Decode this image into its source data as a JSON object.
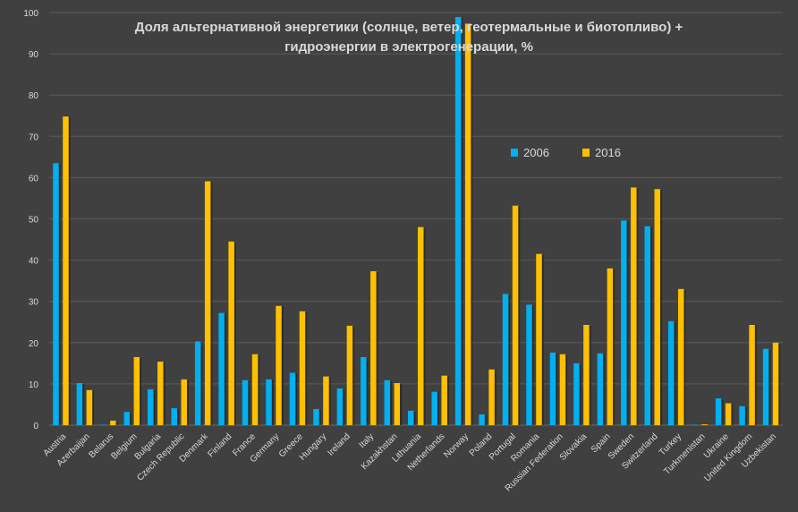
{
  "chart_data": {
    "type": "bar",
    "title_lines": [
      "Доля альтернативной энергетики (солнце, ветер, геотермальные и биотопливо) +",
      "гидроэнергии в электрогенерации, %"
    ],
    "ylim": [
      0,
      100
    ],
    "yticks": [
      0,
      10,
      20,
      30,
      40,
      50,
      60,
      70,
      80,
      90,
      100
    ],
    "grid": true,
    "legend_position": "right, upper-middle",
    "categories": [
      "Austria",
      "Azerbaijan",
      "Belarus",
      "Belgium",
      "Bulgaria",
      "Czech Republic",
      "Denmark",
      "Finland",
      "France",
      "Germany",
      "Greece",
      "Hungary",
      "Ireland",
      "Italy",
      "Kazakhstan",
      "Lithuania",
      "Netherlands",
      "Norway",
      "Poland",
      "Portugal",
      "Romania",
      "Russian Federation",
      "Slovakia",
      "Spain",
      "Sweden",
      "Switzerland",
      "Turkey",
      "Turkmenistan",
      "Ukraine",
      "United Kingdom",
      "Uzbekistan"
    ],
    "series": [
      {
        "name": "2006",
        "color": "#00b0f0",
        "values": [
          63.5,
          10.2,
          0.1,
          3.2,
          8.7,
          4.1,
          20.3,
          27.2,
          10.9,
          11.1,
          12.7,
          3.9,
          8.9,
          16.5,
          10.9,
          3.5,
          8.1,
          98.9,
          2.6,
          31.8,
          29.2,
          17.6,
          15.0,
          17.4,
          49.6,
          48.2,
          25.2,
          0.1,
          6.5,
          4.6,
          18.5
        ]
      },
      {
        "name": "2016",
        "color": "#ffc000",
        "values": [
          74.8,
          8.5,
          1.1,
          16.5,
          15.4,
          11.1,
          59.1,
          44.5,
          17.2,
          28.9,
          27.6,
          11.8,
          24.1,
          37.3,
          10.2,
          48.0,
          12.0,
          97.3,
          13.5,
          53.2,
          41.5,
          17.2,
          24.3,
          38.0,
          57.6,
          57.2,
          33.0,
          0.2,
          5.3,
          24.3,
          20.0
        ]
      }
    ]
  }
}
